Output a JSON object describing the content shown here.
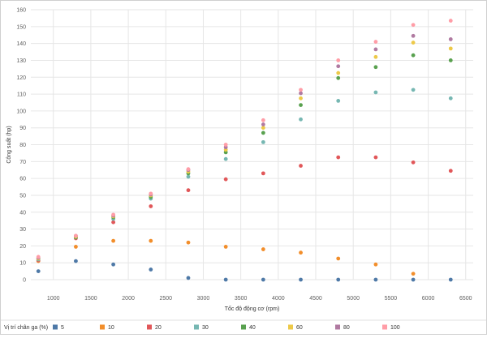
{
  "chart_data": {
    "type": "scatter",
    "title": "",
    "xlabel": "Tốc độ động cơ (rpm)",
    "ylabel": "Công suất (hp)",
    "xlim": [
      700,
      6600
    ],
    "ylim": [
      0,
      160
    ],
    "x_ticks": [
      1000,
      1500,
      2000,
      2500,
      3000,
      3500,
      4000,
      4500,
      5000,
      5500,
      6000,
      6500
    ],
    "y_ticks": [
      0,
      10,
      20,
      30,
      40,
      50,
      60,
      70,
      80,
      90,
      100,
      110,
      120,
      130,
      140,
      150,
      160
    ],
    "grid": true,
    "legend_title": "Vị trí chân ga (%)",
    "legend_position": "bottom",
    "x": [
      800,
      1300,
      1800,
      2300,
      2800,
      3300,
      3800,
      4300,
      4800,
      5300,
      5800,
      6300
    ],
    "series": [
      {
        "name": "5",
        "color": "#4e79a7",
        "values": [
          5,
          11,
          9,
          6,
          1,
          0,
          0,
          0,
          0,
          0,
          0,
          0
        ]
      },
      {
        "name": "10",
        "color": "#f28e2b",
        "values": [
          11,
          19.5,
          23,
          23,
          22,
          19.5,
          18,
          16,
          12.5,
          9,
          3.5,
          null
        ]
      },
      {
        "name": "20",
        "color": "#e15759",
        "values": [
          11.5,
          24.5,
          34,
          43.5,
          53,
          59.5,
          63,
          67.5,
          72.5,
          72.5,
          69.5,
          64.5
        ]
      },
      {
        "name": "30",
        "color": "#76b7b2",
        "values": [
          12,
          25,
          36,
          48,
          61,
          71.5,
          81.5,
          95,
          106,
          111,
          112.5,
          107.5
        ]
      },
      {
        "name": "40",
        "color": "#59a14f",
        "values": [
          12.5,
          25,
          37,
          49,
          63,
          75.5,
          87,
          103.5,
          119.5,
          126,
          133,
          130
        ]
      },
      {
        "name": "60",
        "color": "#edc948",
        "values": [
          12.5,
          25.5,
          37.5,
          50,
          64,
          77,
          90,
          107.5,
          122.5,
          132,
          140.5,
          137
        ]
      },
      {
        "name": "80",
        "color": "#b07aa1",
        "values": [
          13,
          26,
          38,
          50.5,
          65,
          78.5,
          92,
          110.5,
          126.5,
          136.5,
          144.5,
          142.5
        ]
      },
      {
        "name": "100",
        "color": "#ff9da7",
        "values": [
          13.5,
          26,
          38.5,
          51,
          65.5,
          80,
          94.5,
          112.5,
          130,
          141,
          151,
          153.5
        ]
      }
    ]
  }
}
